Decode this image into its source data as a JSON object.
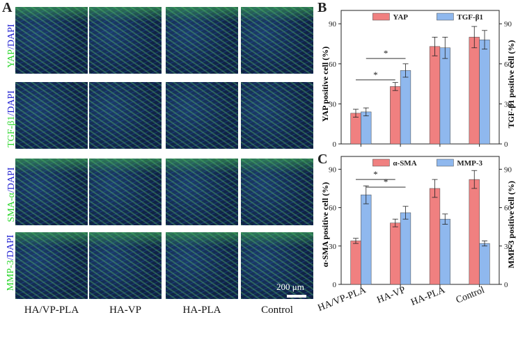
{
  "panels": {
    "a": "A",
    "b": "B",
    "c": "C"
  },
  "panel_a": {
    "row_labels": [
      {
        "marker": "YAP",
        "sep": "/",
        "stain": "DAPI"
      },
      {
        "marker": "TGF-β1",
        "sep": "/",
        "stain": "DAPI"
      },
      {
        "marker": "SMA-α",
        "sep": "/",
        "stain": "DAPI"
      },
      {
        "marker": "MMP-3",
        "sep": "/",
        "stain": "DAPI"
      }
    ],
    "column_labels": [
      "HA/VP-PLA",
      "HA-VP",
      "HA-PLA",
      "Control"
    ],
    "scale_bar": "200 μm"
  },
  "colors": {
    "series_primary": "#f08080",
    "series_secondary": "#8fb8ee",
    "bar_edge": "#444444",
    "error_bar": "#222222",
    "marker_green": "#2bd62b",
    "stain_blue": "#1f1fd0"
  },
  "chart_data": [
    {
      "id": "B",
      "type": "bar",
      "categories": [
        "HA/VP-PLA",
        "HA-VP",
        "HA-PLA",
        "Control"
      ],
      "series": [
        {
          "name": "YAP",
          "values": [
            23,
            43,
            73,
            80
          ],
          "errors": [
            3,
            3,
            7,
            8
          ]
        },
        {
          "name": "TGF-β1",
          "values": [
            24,
            55,
            72,
            78
          ],
          "errors": [
            3,
            5,
            8,
            7
          ]
        }
      ],
      "ylabel": "YAP positive cell (%)",
      "ylabel_right": "TGF-β1 positive cell (%)",
      "ylim": [
        0,
        100
      ],
      "yticks": [
        0,
        30,
        60,
        90
      ],
      "legend_position": "top-center",
      "significance": [
        {
          "from_category": 0,
          "to_category": 1,
          "series": 0,
          "label": "*",
          "y": 48
        },
        {
          "from_category": 0,
          "to_category": 1,
          "series": 1,
          "label": "*",
          "y": 64
        }
      ]
    },
    {
      "id": "C",
      "type": "bar",
      "categories": [
        "HA/VP-PLA",
        "HA-VP",
        "HA-PLA",
        "Control"
      ],
      "series": [
        {
          "name": "α-SMA",
          "values": [
            34,
            48,
            75,
            82
          ],
          "errors": [
            2,
            3,
            7,
            7
          ]
        },
        {
          "name": "MMP-3",
          "values": [
            70,
            56,
            51,
            32
          ],
          "errors": [
            7,
            5,
            4,
            2
          ]
        }
      ],
      "ylabel": "α-SMA positive cell (%)",
      "ylabel_right": "MMP-3 positive cell (%)",
      "ylim": [
        0,
        100
      ],
      "yticks": [
        0,
        30,
        60,
        90
      ],
      "legend_position": "top-center",
      "significance": [
        {
          "from_category": 0,
          "to_category": 1,
          "series": 0,
          "label": "*",
          "y": 82
        },
        {
          "from_category": 0,
          "to_category": 1,
          "series": 1,
          "label": "*",
          "y": 76
        }
      ]
    }
  ]
}
